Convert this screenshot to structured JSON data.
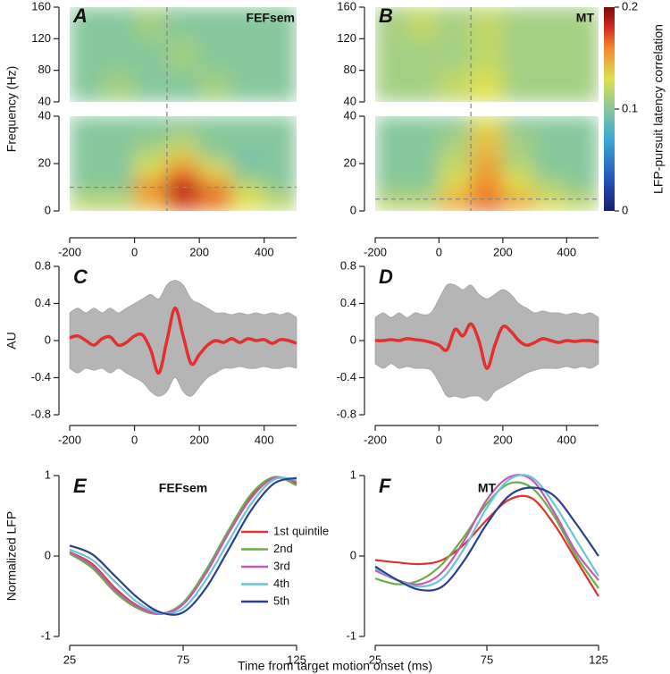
{
  "shared_xlabel": "Time from target motion onset (ms)",
  "colorbar": {
    "label": "LFP-pursuit latency correlation",
    "lim": [
      0,
      0.2
    ],
    "ticks": [
      0,
      0.1,
      0.2
    ],
    "colormap": "jet"
  },
  "chart_data": [
    {
      "type": "heatmap",
      "label": "A",
      "title": "FEFsem",
      "ylabel": "Frequency (Hz)",
      "xlim": [
        -200,
        500
      ],
      "xticks": [
        -200,
        0,
        200,
        400
      ],
      "xbins": [
        -200,
        -100,
        0,
        100,
        200,
        300,
        400,
        500
      ],
      "vline": 100,
      "panels": [
        {
          "ylim": [
            40,
            160
          ],
          "yticks": [
            40,
            80,
            120,
            160
          ],
          "ybins": [
            40,
            80,
            120,
            160
          ],
          "values": [
            [
              0.1,
              0.11,
              0.1,
              0.1,
              0.11,
              0.1,
              0.1
            ],
            [
              0.1,
              0.1,
              0.1,
              0.11,
              0.1,
              0.1,
              0.1
            ],
            [
              0.1,
              0.1,
              0.11,
              0.1,
              0.1,
              0.1,
              0.1
            ]
          ]
        },
        {
          "ylim": [
            0,
            40
          ],
          "yticks": [
            0,
            20,
            40
          ],
          "ybins": [
            0,
            5,
            10,
            15,
            20,
            25,
            30,
            35,
            40
          ],
          "hline": 10,
          "values": [
            [
              0.12,
              0.12,
              0.14,
              0.17,
              0.16,
              0.13,
              0.12
            ],
            [
              0.11,
              0.11,
              0.16,
              0.19,
              0.17,
              0.13,
              0.11
            ],
            [
              0.1,
              0.1,
              0.15,
              0.18,
              0.15,
              0.11,
              0.1
            ],
            [
              0.1,
              0.1,
              0.13,
              0.16,
              0.13,
              0.1,
              0.1
            ],
            [
              0.1,
              0.1,
              0.12,
              0.14,
              0.11,
              0.09,
              0.1
            ],
            [
              0.1,
              0.1,
              0.11,
              0.12,
              0.1,
              0.1,
              0.1
            ],
            [
              0.1,
              0.1,
              0.1,
              0.11,
              0.1,
              0.1,
              0.1
            ],
            [
              0.1,
              0.1,
              0.1,
              0.1,
              0.1,
              0.1,
              0.1
            ]
          ]
        }
      ]
    },
    {
      "type": "heatmap",
      "label": "B",
      "title": "MT",
      "xlim": [
        -200,
        500
      ],
      "xticks": [
        -200,
        0,
        200,
        400
      ],
      "xbins": [
        -200,
        -100,
        0,
        100,
        200,
        300,
        400,
        500
      ],
      "vline": 100,
      "panels": [
        {
          "ylim": [
            40,
            160
          ],
          "yticks": [
            40,
            80,
            120,
            160
          ],
          "ybins": [
            40,
            80,
            120,
            160
          ],
          "values": [
            [
              0.11,
              0.11,
              0.12,
              0.13,
              0.11,
              0.11,
              0.11
            ],
            [
              0.11,
              0.11,
              0.11,
              0.12,
              0.11,
              0.11,
              0.11
            ],
            [
              0.11,
              0.12,
              0.11,
              0.12,
              0.11,
              0.11,
              0.11
            ]
          ]
        },
        {
          "ylim": [
            0,
            40
          ],
          "yticks": [
            0,
            20,
            40
          ],
          "ybins": [
            0,
            5,
            10,
            15,
            20,
            25,
            30,
            35,
            40
          ],
          "hline": 5,
          "values": [
            [
              0.12,
              0.12,
              0.15,
              0.17,
              0.15,
              0.13,
              0.12
            ],
            [
              0.11,
              0.11,
              0.14,
              0.16,
              0.14,
              0.12,
              0.11
            ],
            [
              0.1,
              0.1,
              0.13,
              0.16,
              0.13,
              0.11,
              0.1
            ],
            [
              0.1,
              0.1,
              0.12,
              0.15,
              0.12,
              0.1,
              0.1
            ],
            [
              0.1,
              0.1,
              0.12,
              0.15,
              0.11,
              0.1,
              0.1
            ],
            [
              0.1,
              0.1,
              0.11,
              0.14,
              0.11,
              0.1,
              0.1
            ],
            [
              0.1,
              0.1,
              0.11,
              0.14,
              0.11,
              0.1,
              0.1
            ],
            [
              0.1,
              0.1,
              0.1,
              0.13,
              0.1,
              0.1,
              0.1
            ]
          ]
        }
      ]
    },
    {
      "type": "line",
      "label": "C",
      "ylabel": "AU",
      "xlim": [
        -200,
        500
      ],
      "xticks": [
        -200,
        0,
        200,
        400
      ],
      "ylim": [
        -0.8,
        0.8
      ],
      "yticks": [
        -0.8,
        -0.4,
        0,
        0.4,
        0.8
      ],
      "x": [
        -200,
        -175,
        -150,
        -125,
        -100,
        -75,
        -50,
        -25,
        0,
        25,
        50,
        75,
        100,
        125,
        150,
        175,
        200,
        225,
        250,
        275,
        300,
        325,
        350,
        375,
        400,
        425,
        450,
        475,
        500
      ],
      "band": {
        "color": "#b5b5b5",
        "upper": [
          0.3,
          0.35,
          0.3,
          0.35,
          0.3,
          0.35,
          0.3,
          0.35,
          0.4,
          0.45,
          0.5,
          0.45,
          0.6,
          0.65,
          0.6,
          0.45,
          0.4,
          0.35,
          0.3,
          0.3,
          0.28,
          0.3,
          0.28,
          0.3,
          0.28,
          0.3,
          0.28,
          0.3,
          0.25
        ],
        "lower": [
          -0.3,
          -0.35,
          -0.3,
          -0.32,
          -0.3,
          -0.35,
          -0.3,
          -0.35,
          -0.4,
          -0.45,
          -0.55,
          -0.6,
          -0.55,
          -0.4,
          -0.55,
          -0.6,
          -0.5,
          -0.4,
          -0.35,
          -0.3,
          -0.3,
          -0.28,
          -0.3,
          -0.3,
          -0.28,
          -0.3,
          -0.3,
          -0.28,
          -0.3
        ]
      },
      "series": [
        {
          "color": "#e0302f",
          "values": [
            0.03,
            0.05,
            0,
            -0.05,
            0.02,
            0.04,
            -0.05,
            -0.02,
            0.05,
            0.06,
            -0.1,
            -0.35,
            0,
            0.35,
            0.05,
            -0.25,
            -0.15,
            -0.05,
            0,
            -0.02,
            0.02,
            -0.02,
            0.02,
            0,
            0.01,
            -0.03,
            0.01,
            0,
            -0.03
          ]
        }
      ]
    },
    {
      "type": "line",
      "label": "D",
      "xlim": [
        -200,
        500
      ],
      "xticks": [
        -200,
        0,
        200,
        400
      ],
      "ylim": [
        -0.8,
        0.8
      ],
      "yticks": [
        -0.8,
        -0.4,
        0,
        0.4,
        0.8
      ],
      "x": [
        -200,
        -175,
        -150,
        -125,
        -100,
        -75,
        -50,
        -25,
        0,
        25,
        50,
        75,
        100,
        125,
        150,
        175,
        200,
        225,
        250,
        275,
        300,
        325,
        350,
        375,
        400,
        425,
        450,
        475,
        500
      ],
      "band": {
        "color": "#b5b5b5",
        "upper": [
          0.25,
          0.3,
          0.25,
          0.3,
          0.25,
          0.3,
          0.28,
          0.3,
          0.45,
          0.6,
          0.6,
          0.55,
          0.6,
          0.5,
          0.45,
          0.5,
          0.55,
          0.5,
          0.4,
          0.35,
          0.3,
          0.32,
          0.3,
          0.3,
          0.28,
          0.3,
          0.28,
          0.3,
          0.25
        ],
        "lower": [
          -0.25,
          -0.3,
          -0.25,
          -0.3,
          -0.28,
          -0.3,
          -0.3,
          -0.32,
          -0.45,
          -0.6,
          -0.6,
          -0.62,
          -0.6,
          -0.6,
          -0.65,
          -0.55,
          -0.5,
          -0.45,
          -0.4,
          -0.35,
          -0.32,
          -0.3,
          -0.3,
          -0.3,
          -0.28,
          -0.3,
          -0.28,
          -0.3,
          -0.25
        ]
      },
      "series": [
        {
          "color": "#e0302f",
          "values": [
            0,
            0,
            0.01,
            0,
            0.02,
            0.01,
            0,
            -0.02,
            -0.05,
            -0.1,
            0.12,
            0.05,
            0.18,
            0,
            -0.3,
            -0.05,
            0.15,
            0.1,
            0,
            -0.05,
            -0.02,
            0.02,
            0,
            -0.02,
            0,
            -0.01,
            0,
            0,
            -0.02
          ]
        }
      ]
    },
    {
      "type": "line",
      "label": "E",
      "title": "FEFsem",
      "ylabel": "Normalized LFP",
      "xlim": [
        25,
        125
      ],
      "xticks": [
        25,
        75,
        125
      ],
      "ylim": [
        -1,
        1
      ],
      "yticks": [
        -1,
        0,
        1
      ],
      "legend": "center right",
      "x": [
        25,
        35,
        45,
        55,
        65,
        75,
        85,
        95,
        105,
        115,
        125
      ],
      "series": [
        {
          "name": "1st quintile",
          "color": "#e0302f",
          "values": [
            0.05,
            -0.1,
            -0.4,
            -0.62,
            -0.72,
            -0.6,
            -0.2,
            0.3,
            0.75,
            0.98,
            0.9
          ]
        },
        {
          "name": "2nd",
          "color": "#6aaf45",
          "values": [
            0.03,
            -0.15,
            -0.45,
            -0.65,
            -0.72,
            -0.58,
            -0.18,
            0.32,
            0.77,
            0.98,
            0.88
          ]
        },
        {
          "name": "3rd",
          "color": "#c05ab5",
          "values": [
            0.05,
            -0.12,
            -0.42,
            -0.63,
            -0.72,
            -0.6,
            -0.22,
            0.28,
            0.72,
            0.97,
            0.92
          ]
        },
        {
          "name": "4th",
          "color": "#6cc3d8",
          "values": [
            0.08,
            -0.05,
            -0.32,
            -0.58,
            -0.71,
            -0.65,
            -0.3,
            0.18,
            0.65,
            0.95,
            0.95
          ]
        },
        {
          "name": "5th",
          "color": "#2b3f8f",
          "values": [
            0.13,
            0.02,
            -0.25,
            -0.52,
            -0.7,
            -0.7,
            -0.4,
            0.08,
            0.57,
            0.9,
            0.97
          ]
        }
      ]
    },
    {
      "type": "line",
      "label": "F",
      "title": "MT",
      "xlim": [
        25,
        125
      ],
      "xticks": [
        25,
        75,
        125
      ],
      "ylim": [
        -1,
        1
      ],
      "yticks": [
        -1,
        0,
        1
      ],
      "x": [
        25,
        35,
        45,
        55,
        65,
        75,
        85,
        95,
        105,
        115,
        125
      ],
      "series": [
        {
          "color": "#e0302f",
          "values": [
            -0.05,
            -0.08,
            -0.1,
            -0.05,
            0.15,
            0.45,
            0.7,
            0.72,
            0.4,
            -0.05,
            -0.5
          ]
        },
        {
          "color": "#6aaf45",
          "values": [
            -0.28,
            -0.35,
            -0.3,
            -0.1,
            0.25,
            0.65,
            0.9,
            0.85,
            0.5,
            0,
            -0.4
          ]
        },
        {
          "color": "#c05ab5",
          "values": [
            -0.18,
            -0.3,
            -0.35,
            -0.2,
            0.2,
            0.7,
            0.98,
            0.95,
            0.55,
            0.05,
            -0.3
          ]
        },
        {
          "color": "#6cc3d8",
          "values": [
            -0.15,
            -0.3,
            -0.38,
            -0.28,
            0.1,
            0.6,
            0.95,
            0.98,
            0.65,
            0.2,
            -0.25
          ]
        },
        {
          "color": "#2b3f8f",
          "values": [
            -0.13,
            -0.3,
            -0.42,
            -0.38,
            -0.05,
            0.4,
            0.75,
            0.85,
            0.75,
            0.4,
            0
          ]
        }
      ]
    }
  ]
}
